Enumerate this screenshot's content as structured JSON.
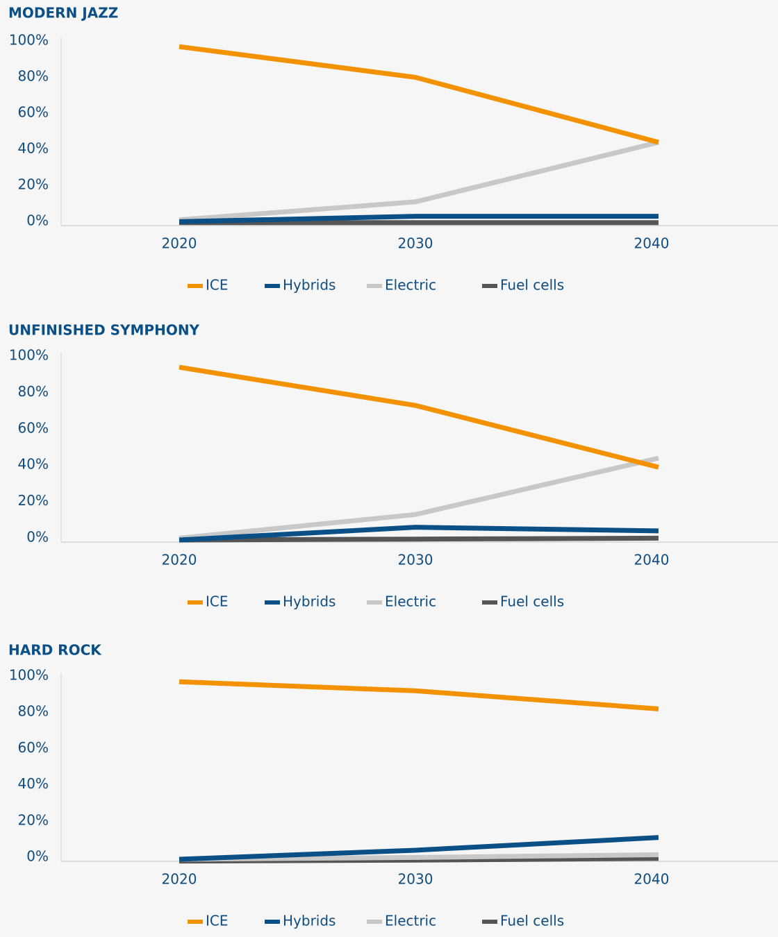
{
  "chart_data": [
    {
      "type": "line",
      "title": "MODERN JAZZ",
      "categories": [
        "2020",
        "2030",
        "2040"
      ],
      "series": [
        {
          "name": "ICE",
          "color": "#f39200",
          "values": [
            98,
            81,
            45
          ]
        },
        {
          "name": "Hybrids",
          "color": "#0a4f86",
          "values": [
            1,
            4,
            4
          ]
        },
        {
          "name": "Electric",
          "color": "#c8c8c8",
          "values": [
            2,
            12,
            45
          ]
        },
        {
          "name": "Fuel cells",
          "color": "#555555",
          "values": [
            0.5,
            0.5,
            0.5
          ]
        }
      ],
      "ylim": [
        0,
        100
      ],
      "yticks": [
        {
          "value": 0,
          "label": "0%"
        },
        {
          "value": 20,
          "label": "20%"
        },
        {
          "value": 40,
          "label": "40%"
        },
        {
          "value": 60,
          "label": "60%"
        },
        {
          "value": 80,
          "label": "80%"
        },
        {
          "value": 100,
          "label": "100%"
        }
      ],
      "legend": "bottom"
    },
    {
      "type": "line",
      "title": "UNFINISHED SYMPHONY",
      "categories": [
        "2020",
        "2030",
        "2040"
      ],
      "series": [
        {
          "name": "ICE",
          "color": "#f39200",
          "values": [
            95,
            74,
            40
          ]
        },
        {
          "name": "Hybrids",
          "color": "#0a4f86",
          "values": [
            0,
            7,
            5
          ]
        },
        {
          "name": "Electric",
          "color": "#c8c8c8",
          "values": [
            1,
            14,
            45
          ]
        },
        {
          "name": "Fuel cells",
          "color": "#555555",
          "values": [
            0,
            0.5,
            1
          ]
        }
      ],
      "ylim": [
        0,
        100
      ],
      "yticks": [
        {
          "value": 0,
          "label": "0%"
        },
        {
          "value": 20,
          "label": "20%"
        },
        {
          "value": 40,
          "label": "40%"
        },
        {
          "value": 60,
          "label": "60%"
        },
        {
          "value": 80,
          "label": "80%"
        },
        {
          "value": 100,
          "label": "100%"
        }
      ],
      "legend": "bottom"
    },
    {
      "type": "line",
      "title": "HARD ROCK",
      "categories": [
        "2020",
        "2030",
        "2040"
      ],
      "series": [
        {
          "name": "ICE",
          "color": "#f39200",
          "values": [
            98,
            93,
            83
          ]
        },
        {
          "name": "Hybrids",
          "color": "#0a4f86",
          "values": [
            0,
            5,
            12
          ]
        },
        {
          "name": "Electric",
          "color": "#c8c8c8",
          "values": [
            0,
            1,
            2.5
          ]
        },
        {
          "name": "Fuel cells",
          "color": "#555555",
          "values": [
            -1,
            -0.5,
            0.5
          ]
        }
      ],
      "ylim": [
        0,
        100
      ],
      "yticks": [
        {
          "value": 0,
          "label": "0%"
        },
        {
          "value": 20,
          "label": "20%"
        },
        {
          "value": 40,
          "label": "40%"
        },
        {
          "value": 60,
          "label": "60%"
        },
        {
          "value": 80,
          "label": "80%"
        },
        {
          "value": 100,
          "label": "100%"
        }
      ],
      "legend": "bottom"
    }
  ]
}
